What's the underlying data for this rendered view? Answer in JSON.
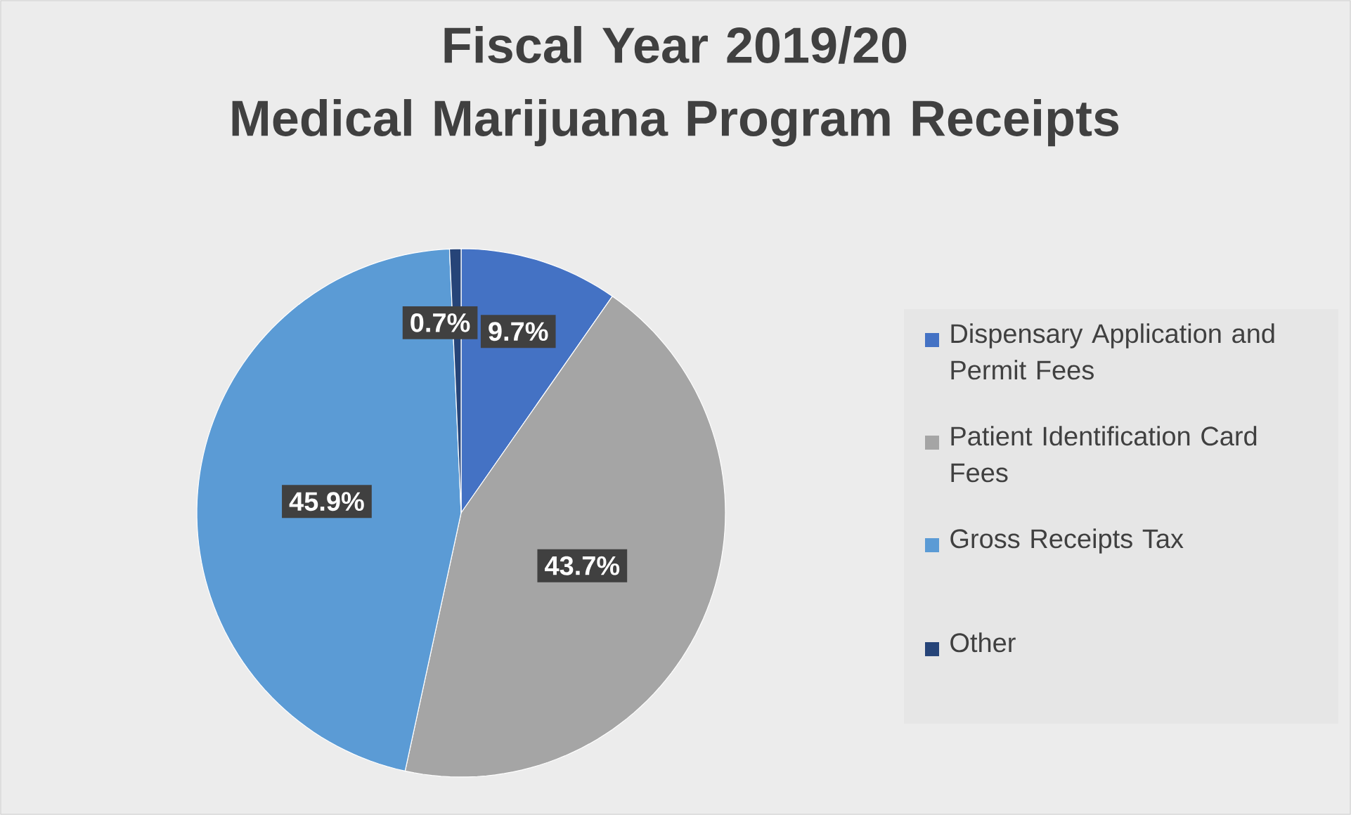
{
  "chart_data": {
    "type": "pie",
    "title": "Fiscal Year 2019/20\nMedical Marijuana Program Receipts",
    "categories": [
      "Dispensary Application and Permit Fees",
      "Patient Identification Card Fees",
      "Gross Receipts Tax",
      "Other"
    ],
    "values": [
      9.7,
      43.7,
      45.9,
      0.7
    ],
    "colors": [
      "#4472c4",
      "#a5a5a5",
      "#5b9bd5",
      "#264478"
    ],
    "value_labels": [
      "9.7%",
      "43.7%",
      "45.9%",
      "0.7%"
    ],
    "legend": "right"
  }
}
